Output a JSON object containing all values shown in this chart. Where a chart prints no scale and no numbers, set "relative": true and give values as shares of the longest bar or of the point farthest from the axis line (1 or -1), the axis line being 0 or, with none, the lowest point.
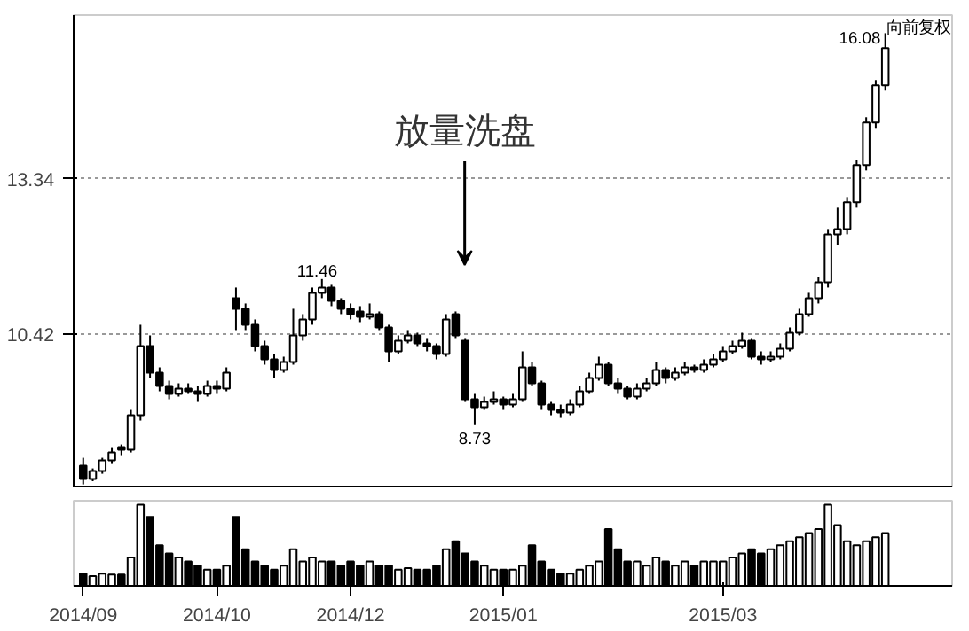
{
  "chart_data": [
    {
      "type": "candlestick",
      "categories": [
        "2014/09",
        null,
        null,
        null,
        null,
        null,
        null,
        null,
        null,
        null,
        null,
        null,
        null,
        null,
        "2014/10",
        null,
        null,
        null,
        null,
        null,
        null,
        null,
        null,
        null,
        null,
        null,
        null,
        null,
        "2014/12",
        null,
        null,
        null,
        null,
        null,
        null,
        null,
        null,
        null,
        null,
        null,
        null,
        null,
        null,
        null,
        "2015/01",
        null,
        null,
        null,
        null,
        null,
        null,
        null,
        null,
        null,
        null,
        null,
        null,
        null,
        null,
        null,
        null,
        null,
        null,
        null,
        null,
        null,
        null,
        "2015/03",
        null,
        null,
        null,
        null,
        null,
        null,
        null,
        null,
        null,
        null,
        null,
        null,
        null,
        null,
        null,
        null,
        null
      ],
      "ohlc": [
        [
          7.95,
          8.1,
          7.6,
          7.7
        ],
        [
          7.7,
          7.9,
          7.66,
          7.85
        ],
        [
          7.85,
          8.1,
          7.8,
          8.05
        ],
        [
          8.05,
          8.3,
          8.0,
          8.2
        ],
        [
          8.3,
          8.35,
          8.15,
          8.25
        ],
        [
          8.25,
          9.0,
          8.2,
          8.9
        ],
        [
          8.9,
          10.6,
          8.8,
          10.2
        ],
        [
          10.2,
          10.4,
          9.6,
          9.7
        ],
        [
          9.7,
          9.8,
          9.35,
          9.45
        ],
        [
          9.45,
          9.55,
          9.2,
          9.3
        ],
        [
          9.3,
          9.5,
          9.25,
          9.4
        ],
        [
          9.4,
          9.5,
          9.3,
          9.35
        ],
        [
          9.35,
          9.45,
          9.15,
          9.3
        ],
        [
          9.3,
          9.55,
          9.25,
          9.45
        ],
        [
          9.45,
          9.55,
          9.3,
          9.4
        ],
        [
          9.4,
          9.8,
          9.35,
          9.7
        ],
        [
          11.1,
          11.3,
          10.5,
          10.9
        ],
        [
          10.9,
          11.0,
          10.5,
          10.6
        ],
        [
          10.6,
          10.7,
          10.1,
          10.2
        ],
        [
          10.2,
          10.3,
          9.85,
          9.95
        ],
        [
          9.95,
          10.05,
          9.6,
          9.75
        ],
        [
          9.75,
          10.0,
          9.7,
          9.9
        ],
        [
          9.9,
          10.9,
          9.85,
          10.4
        ],
        [
          10.4,
          10.8,
          10.3,
          10.7
        ],
        [
          10.7,
          11.3,
          10.6,
          11.2
        ],
        [
          11.2,
          11.46,
          11.1,
          11.3
        ],
        [
          11.3,
          11.35,
          10.95,
          11.05
        ],
        [
          11.05,
          11.1,
          10.8,
          10.9
        ],
        [
          10.9,
          11.0,
          10.7,
          10.8
        ],
        [
          10.85,
          10.95,
          10.65,
          10.75
        ],
        [
          10.75,
          11.0,
          10.7,
          10.8
        ],
        [
          10.8,
          10.85,
          10.5,
          10.55
        ],
        [
          10.55,
          10.6,
          9.9,
          10.1
        ],
        [
          10.1,
          10.4,
          10.05,
          10.3
        ],
        [
          10.3,
          10.5,
          10.25,
          10.4
        ],
        [
          10.4,
          10.45,
          10.2,
          10.25
        ],
        [
          10.25,
          10.35,
          10.1,
          10.2
        ],
        [
          10.2,
          10.25,
          9.95,
          10.05
        ],
        [
          10.05,
          10.8,
          10.0,
          10.7
        ],
        [
          10.8,
          10.85,
          10.35,
          10.4
        ],
        [
          10.3,
          10.35,
          9.15,
          9.2
        ],
        [
          9.2,
          9.3,
          8.73,
          9.05
        ],
        [
          9.05,
          9.25,
          9.0,
          9.15
        ],
        [
          9.15,
          9.35,
          9.1,
          9.2
        ],
        [
          9.2,
          9.25,
          9.0,
          9.1
        ],
        [
          9.1,
          9.3,
          9.05,
          9.2
        ],
        [
          9.2,
          10.1,
          9.15,
          9.8
        ],
        [
          9.8,
          9.9,
          9.45,
          9.5
        ],
        [
          9.5,
          9.55,
          9.0,
          9.1
        ],
        [
          9.1,
          9.15,
          8.9,
          9.0
        ],
        [
          9.0,
          9.1,
          8.85,
          8.95
        ],
        [
          8.95,
          9.2,
          8.9,
          9.1
        ],
        [
          9.1,
          9.45,
          9.05,
          9.35
        ],
        [
          9.35,
          9.7,
          9.3,
          9.6
        ],
        [
          9.6,
          10.0,
          9.55,
          9.85
        ],
        [
          9.85,
          9.9,
          9.45,
          9.5
        ],
        [
          9.5,
          9.6,
          9.3,
          9.4
        ],
        [
          9.4,
          9.45,
          9.2,
          9.25
        ],
        [
          9.25,
          9.5,
          9.2,
          9.4
        ],
        [
          9.4,
          9.6,
          9.35,
          9.5
        ],
        [
          9.5,
          9.9,
          9.45,
          9.75
        ],
        [
          9.75,
          9.8,
          9.5,
          9.6
        ],
        [
          9.6,
          9.8,
          9.55,
          9.7
        ],
        [
          9.7,
          9.9,
          9.65,
          9.8
        ],
        [
          9.8,
          9.85,
          9.7,
          9.75
        ],
        [
          9.75,
          9.95,
          9.7,
          9.85
        ],
        [
          9.85,
          10.05,
          9.8,
          9.95
        ],
        [
          9.95,
          10.2,
          9.9,
          10.1
        ],
        [
          10.1,
          10.3,
          10.05,
          10.2
        ],
        [
          10.2,
          10.45,
          10.15,
          10.3
        ],
        [
          10.3,
          10.35,
          9.95,
          10.0
        ],
        [
          10.0,
          10.1,
          9.85,
          9.95
        ],
        [
          9.95,
          10.1,
          9.9,
          10.0
        ],
        [
          10.0,
          10.25,
          9.95,
          10.15
        ],
        [
          10.15,
          10.55,
          10.1,
          10.45
        ],
        [
          10.45,
          10.9,
          10.4,
          10.8
        ],
        [
          10.8,
          11.2,
          10.75,
          11.1
        ],
        [
          11.1,
          11.5,
          11.0,
          11.4
        ],
        [
          11.4,
          12.4,
          11.3,
          12.3
        ],
        [
          12.3,
          12.8,
          12.1,
          12.4
        ],
        [
          12.4,
          13.0,
          12.3,
          12.9
        ],
        [
          12.9,
          13.7,
          12.8,
          13.6
        ],
        [
          13.6,
          14.5,
          13.5,
          14.4
        ],
        [
          14.4,
          15.2,
          14.3,
          15.1
        ],
        [
          15.1,
          16.08,
          15.0,
          15.8
        ]
      ],
      "colors": [
        "#000000",
        "#ffffff",
        "#ffffff",
        "#ffffff",
        "#000000",
        "#ffffff",
        "#ffffff",
        "#000000",
        "#000000",
        "#000000",
        "#ffffff",
        "#000000",
        "#000000",
        "#ffffff",
        "#000000",
        "#ffffff",
        "#000000",
        "#000000",
        "#000000",
        "#000000",
        "#000000",
        "#ffffff",
        "#ffffff",
        "#ffffff",
        "#ffffff",
        "#ffffff",
        "#000000",
        "#000000",
        "#000000",
        "#000000",
        "#ffffff",
        "#000000",
        "#000000",
        "#ffffff",
        "#ffffff",
        "#000000",
        "#000000",
        "#000000",
        "#ffffff",
        "#000000",
        "#000000",
        "#000000",
        "#ffffff",
        "#ffffff",
        "#000000",
        "#ffffff",
        "#ffffff",
        "#000000",
        "#000000",
        "#000000",
        "#000000",
        "#ffffff",
        "#ffffff",
        "#ffffff",
        "#ffffff",
        "#000000",
        "#000000",
        "#000000",
        "#ffffff",
        "#ffffff",
        "#ffffff",
        "#000000",
        "#ffffff",
        "#ffffff",
        "#000000",
        "#ffffff",
        "#ffffff",
        "#ffffff",
        "#ffffff",
        "#ffffff",
        "#000000",
        "#000000",
        "#ffffff",
        "#ffffff",
        "#ffffff",
        "#ffffff",
        "#ffffff",
        "#ffffff",
        "#ffffff",
        "#ffffff",
        "#ffffff",
        "#ffffff",
        "#ffffff",
        "#ffffff",
        "#ffffff"
      ],
      "ylim": [
        7.56,
        16.42
      ],
      "yticks": [
        13.34,
        10.42
      ],
      "grid": "y",
      "tick_labels": "y",
      "annotations": [
        "放量洗盘",
        "向前复权",
        "11.46",
        "8.73",
        "16.08"
      ]
    },
    {
      "type": "bar",
      "relative": true,
      "tick_labels": "x",
      "categories": [
        "2014/09",
        null,
        null,
        null,
        null,
        null,
        null,
        null,
        null,
        null,
        null,
        null,
        null,
        null,
        "2014/10",
        null,
        null,
        null,
        null,
        null,
        null,
        null,
        null,
        null,
        null,
        null,
        null,
        null,
        "2014/12",
        null,
        null,
        null,
        null,
        null,
        null,
        null,
        null,
        null,
        null,
        null,
        null,
        null,
        null,
        null,
        "2015/01",
        null,
        null,
        null,
        null,
        null,
        null,
        null,
        null,
        null,
        null,
        null,
        null,
        null,
        null,
        null,
        null,
        null,
        null,
        null,
        null,
        null,
        null,
        "2015/03",
        null,
        null,
        null,
        null,
        null,
        null,
        null,
        null,
        null,
        null,
        null,
        null,
        null,
        null,
        null,
        null,
        null
      ],
      "values": [
        0.15,
        0.12,
        0.15,
        0.14,
        0.14,
        0.35,
        1.0,
        0.85,
        0.5,
        0.4,
        0.35,
        0.3,
        0.25,
        0.2,
        0.2,
        0.25,
        0.85,
        0.45,
        0.3,
        0.25,
        0.2,
        0.25,
        0.45,
        0.3,
        0.35,
        0.3,
        0.3,
        0.25,
        0.3,
        0.25,
        0.3,
        0.25,
        0.25,
        0.2,
        0.22,
        0.2,
        0.2,
        0.25,
        0.45,
        0.55,
        0.4,
        0.3,
        0.25,
        0.2,
        0.2,
        0.2,
        0.25,
        0.5,
        0.3,
        0.2,
        0.15,
        0.15,
        0.2,
        0.25,
        0.3,
        0.7,
        0.45,
        0.3,
        0.3,
        0.25,
        0.35,
        0.3,
        0.25,
        0.3,
        0.25,
        0.3,
        0.3,
        0.3,
        0.35,
        0.4,
        0.45,
        0.4,
        0.45,
        0.5,
        0.55,
        0.6,
        0.65,
        0.7,
        1.0,
        0.75,
        0.55,
        0.5,
        0.55,
        0.6,
        0.65
      ],
      "colors": [
        "#000000",
        "#ffffff",
        "#ffffff",
        "#ffffff",
        "#000000",
        "#ffffff",
        "#ffffff",
        "#000000",
        "#000000",
        "#000000",
        "#ffffff",
        "#000000",
        "#000000",
        "#ffffff",
        "#000000",
        "#ffffff",
        "#000000",
        "#000000",
        "#000000",
        "#000000",
        "#000000",
        "#ffffff",
        "#ffffff",
        "#ffffff",
        "#ffffff",
        "#ffffff",
        "#000000",
        "#000000",
        "#000000",
        "#000000",
        "#ffffff",
        "#000000",
        "#000000",
        "#ffffff",
        "#ffffff",
        "#000000",
        "#000000",
        "#000000",
        "#ffffff",
        "#000000",
        "#000000",
        "#000000",
        "#ffffff",
        "#ffffff",
        "#000000",
        "#ffffff",
        "#ffffff",
        "#000000",
        "#000000",
        "#000000",
        "#000000",
        "#ffffff",
        "#ffffff",
        "#ffffff",
        "#ffffff",
        "#000000",
        "#000000",
        "#000000",
        "#ffffff",
        "#ffffff",
        "#ffffff",
        "#000000",
        "#ffffff",
        "#ffffff",
        "#000000",
        "#ffffff",
        "#ffffff",
        "#ffffff",
        "#ffffff",
        "#ffffff",
        "#000000",
        "#000000",
        "#ffffff",
        "#ffffff",
        "#ffffff",
        "#ffffff",
        "#ffffff",
        "#ffffff",
        "#ffffff",
        "#ffffff",
        "#ffffff",
        "#ffffff",
        "#ffffff",
        "#ffffff",
        "#ffffff"
      ]
    }
  ]
}
